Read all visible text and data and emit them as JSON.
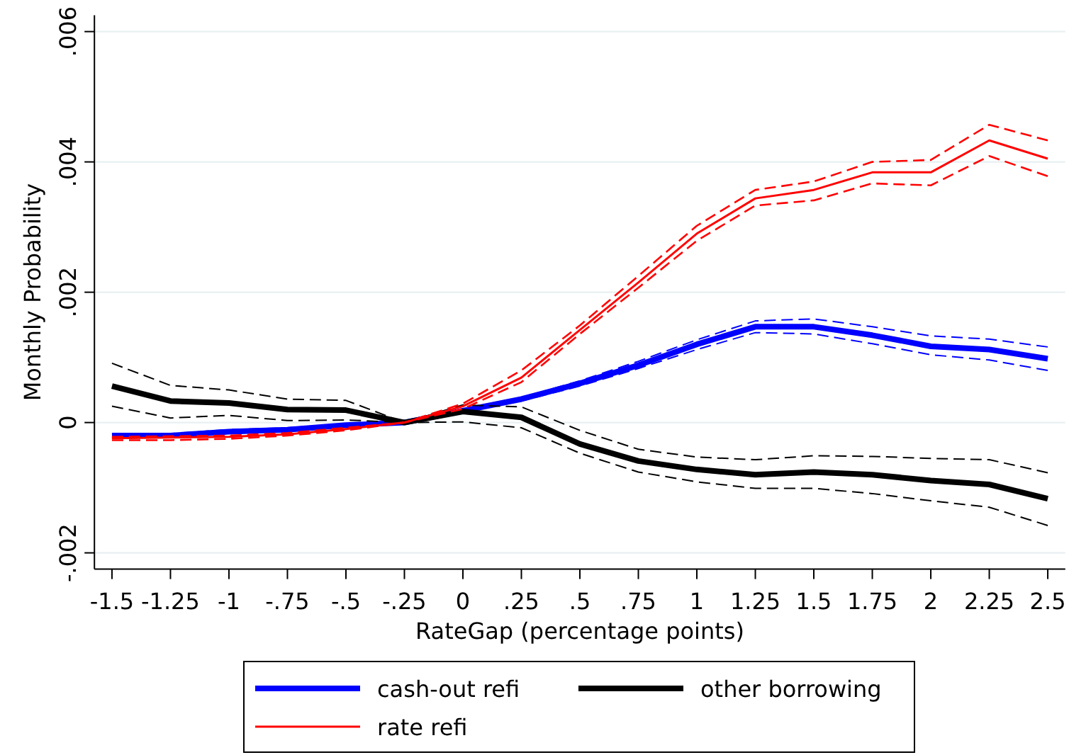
{
  "chart_data": {
    "type": "line",
    "xlabel": "RateGap (percentage points)",
    "ylabel": "Monthly Probability",
    "x": [
      -1.5,
      -1.25,
      -1,
      -0.75,
      -0.5,
      -0.25,
      0,
      0.25,
      0.5,
      0.75,
      1,
      1.25,
      1.5,
      1.75,
      2,
      2.25,
      2.5
    ],
    "xlim": [
      -1.575,
      2.575
    ],
    "xticks": [
      -1.5,
      -1.25,
      -1,
      {
        "value": -0.75,
        "label": "-.75"
      },
      {
        "value": -0.5,
        "label": "-.5"
      },
      {
        "value": -0.25,
        "label": "-.25"
      },
      0,
      {
        "value": 0.25,
        "label": ".25"
      },
      {
        "value": 0.5,
        "label": ".5"
      },
      {
        "value": 0.75,
        "label": ".75"
      },
      1,
      1.25,
      1.5,
      1.75,
      2,
      2.25,
      2.5
    ],
    "ylim": [
      -0.00225,
      0.00625
    ],
    "yticks": [
      {
        "value": -0.002,
        "label": "-.002"
      },
      0,
      {
        "value": 0.002,
        "label": ".002"
      },
      {
        "value": 0.004,
        "label": ".004"
      },
      {
        "value": 0.006,
        "label": ".006"
      }
    ],
    "grid": "y",
    "legend": "bottom",
    "series": [
      {
        "color": "#0000ff",
        "line_style": "dashed",
        "values": [
          -0.00023,
          -0.00023,
          -0.00017,
          -0.00014,
          -6e-05,
          0,
          0.00016,
          0.00033,
          0.00056,
          0.00083,
          0.00112,
          0.00138,
          0.00136,
          0.00121,
          0.00104,
          0.00096,
          0.0008
        ]
      },
      {
        "color": "#0000ff",
        "line_style": "dashed",
        "values": [
          -0.00017,
          -0.00017,
          -0.00011,
          -8e-05,
          -2e-05,
          0,
          0.0002,
          0.00038,
          0.00064,
          0.00094,
          0.00127,
          0.00156,
          0.00159,
          0.00147,
          0.00133,
          0.00128,
          0.00116
        ]
      },
      {
        "name": "cash-out refi",
        "color": "#0000ff",
        "line_style": "solid",
        "values": [
          -0.0002,
          -0.0002,
          -0.00014,
          -0.00011,
          -4e-05,
          0,
          0.00018,
          0.00036,
          0.0006,
          0.00088,
          0.0012,
          0.00147,
          0.00147,
          0.00134,
          0.00117,
          0.00112,
          0.00098
        ]
      },
      {
        "color": "#000000",
        "line_style": "dashed",
        "values": [
          0.00025,
          7e-05,
          0.00011,
          3e-05,
          4e-05,
          0,
          1e-05,
          -8e-05,
          -0.00047,
          -0.00076,
          -0.00091,
          -0.00101,
          -0.00101,
          -0.00109,
          -0.0012,
          -0.0013,
          -0.00158
        ]
      },
      {
        "color": "#000000",
        "line_style": "dashed",
        "values": [
          0.00091,
          0.00057,
          0.0005,
          0.00036,
          0.00034,
          0,
          0.00027,
          0.00024,
          -0.00012,
          -0.00041,
          -0.00053,
          -0.00057,
          -0.00051,
          -0.00052,
          -0.00055,
          -0.00057,
          -0.00077
        ]
      },
      {
        "name": "other borrowing",
        "color": "#000000",
        "line_style": "solid",
        "values": [
          0.00056,
          0.00033,
          0.0003,
          0.0002,
          0.00019,
          0,
          0.00017,
          8e-05,
          -0.00033,
          -0.00059,
          -0.00072,
          -0.0008,
          -0.00076,
          -0.0008,
          -0.00089,
          -0.00095,
          -0.00117
        ]
      },
      {
        "color": "#ff0000",
        "line_style": "dashed",
        "values": [
          -0.00027,
          -0.00027,
          -0.00025,
          -0.0002,
          -0.00012,
          0,
          0.00021,
          0.00062,
          0.00136,
          0.00207,
          0.00279,
          0.00333,
          0.00341,
          0.00367,
          0.00364,
          0.00409,
          0.00378
        ]
      },
      {
        "color": "#ff0000",
        "line_style": "dashed",
        "values": [
          -0.00022,
          -0.00021,
          -0.0002,
          -0.00016,
          -8e-05,
          0,
          0.00029,
          0.0008,
          0.00149,
          0.00225,
          0.00302,
          0.00357,
          0.0037,
          0.004,
          0.00403,
          0.00457,
          0.00433
        ]
      },
      {
        "name": "rate refi",
        "color": "#ff0000",
        "line_style": "solid",
        "values": [
          -0.00024,
          -0.00023,
          -0.00022,
          -0.00018,
          -0.0001,
          0,
          0.00025,
          0.00069,
          0.00142,
          0.00215,
          0.0029,
          0.00344,
          0.00357,
          0.00384,
          0.00384,
          0.00433,
          0.00405
        ]
      }
    ]
  }
}
